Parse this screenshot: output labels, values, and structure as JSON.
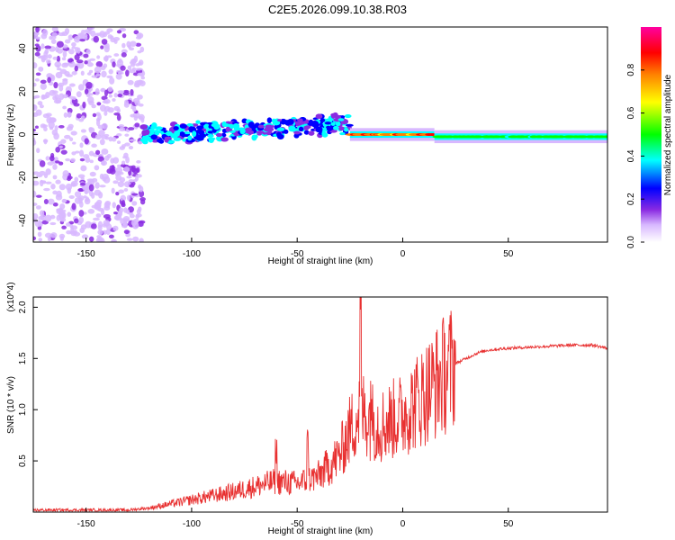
{
  "title": "C2E5.2026.099.10.38.R03",
  "chart_data": [
    {
      "type": "heatmap",
      "name": "spectrogram",
      "xlabel": "Height of straight line (km)",
      "ylabel": "Frequency (Hz)",
      "xlim": [
        -175,
        97
      ],
      "ylim": [
        -50,
        50
      ],
      "xticks": [
        -150,
        -100,
        -50,
        0,
        50
      ],
      "yticks": [
        -40,
        -20,
        0,
        20,
        40
      ],
      "colorbar": {
        "label": "Normalized spectral amplitude",
        "range": [
          0,
          1
        ],
        "ticks": [
          0.0,
          0.2,
          0.4,
          0.6,
          0.8
        ],
        "colors": [
          "#ffffff",
          "#8a2be2",
          "#0000ff",
          "#00ffff",
          "#00ff00",
          "#ffff00",
          "#ff8000",
          "#ff0000",
          "#ff00ff"
        ]
      },
      "regions": [
        {
          "x_range": [
            -175,
            -123
          ],
          "freq_range": [
            -50,
            50
          ],
          "amplitude": 0.15,
          "pattern": "scattered noise"
        },
        {
          "x_range": [
            -123,
            -25
          ],
          "center_freq": [
            0,
            5
          ],
          "amplitude": 0.35,
          "pattern": "clustered signal"
        },
        {
          "x_range": [
            -25,
            15
          ],
          "center_freq": 0,
          "amplitude": 0.95,
          "pattern": "strong narrow band"
        },
        {
          "x_range": [
            15,
            97
          ],
          "center_freq": -1,
          "amplitude": 0.6,
          "pattern": "narrow band"
        }
      ]
    },
    {
      "type": "line",
      "name": "snr",
      "xlabel": "Height of straight line (km)",
      "ylabel": "SNR (10 * v/v)",
      "y_multiplier": "(x10^4)",
      "xlim": [
        -175,
        97
      ],
      "ylim": [
        0,
        2.1
      ],
      "xticks": [
        -150,
        -100,
        -50,
        0,
        50
      ],
      "yticks": [
        0.5,
        1.0,
        1.5,
        2.0
      ],
      "color": "#e83030",
      "x": [
        -175,
        -150,
        -130,
        -120,
        -110,
        -100,
        -90,
        -80,
        -70,
        -60,
        -50,
        -40,
        -30,
        -25,
        -20,
        -15,
        -10,
        -5,
        0,
        5,
        10,
        15,
        20,
        25,
        30,
        35,
        40,
        50,
        60,
        70,
        80,
        90,
        97
      ],
      "y": [
        0.02,
        0.02,
        0.02,
        0.04,
        0.08,
        0.12,
        0.16,
        0.2,
        0.25,
        0.3,
        0.28,
        0.35,
        0.55,
        0.8,
        1.0,
        0.9,
        0.85,
        0.9,
        0.95,
        1.05,
        1.15,
        1.25,
        1.35,
        1.45,
        1.5,
        1.55,
        1.58,
        1.6,
        1.61,
        1.62,
        1.63,
        1.63,
        1.6
      ],
      "peaks": [
        [
          -60,
          0.6
        ],
        [
          -20,
          2.1
        ],
        [
          -45,
          0.7
        ],
        [
          -15,
          1.2
        ]
      ]
    }
  ]
}
